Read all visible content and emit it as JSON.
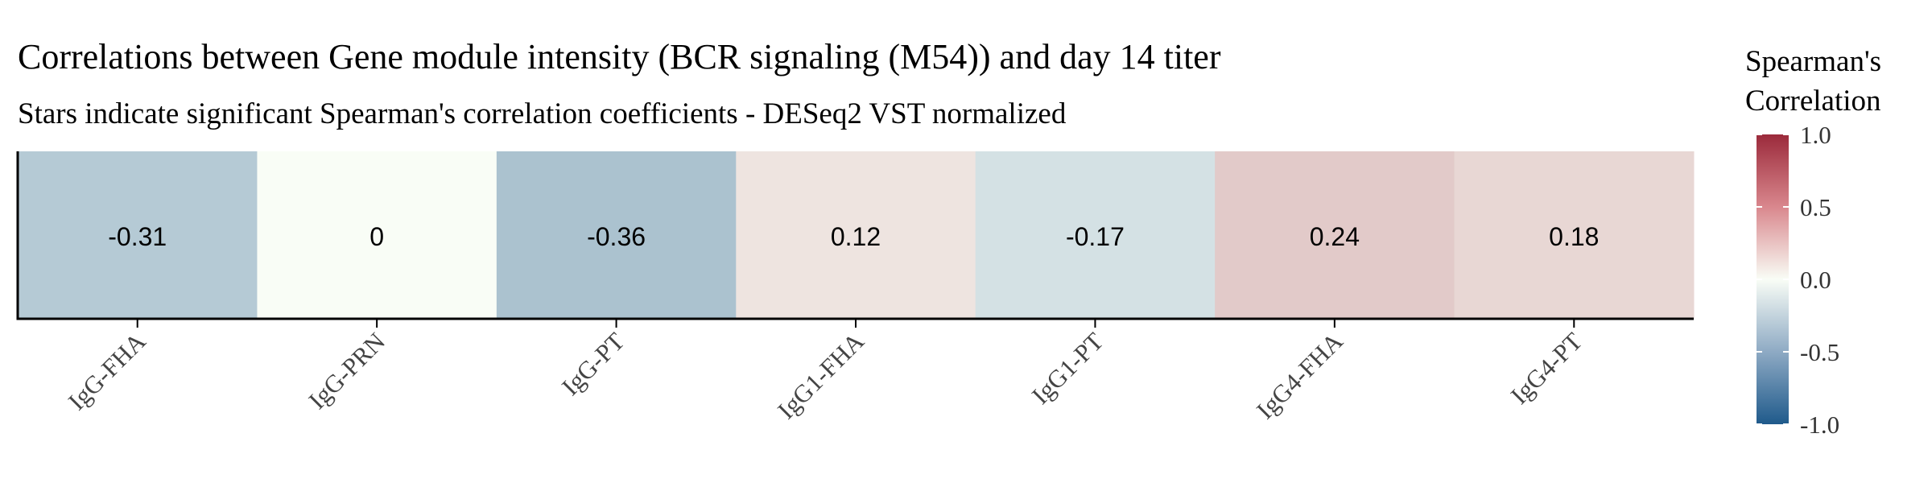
{
  "chart_data": {
    "type": "heatmap",
    "title": "Correlations between Gene module intensity (BCR signaling (M54)) and day 14 titer",
    "subtitle": "Stars indicate significant Spearman's correlation coefficients - DESeq2 VST normalized",
    "categories": [
      "IgG-FHA",
      "IgG-PRN",
      "IgG-PT",
      "IgG1-FHA",
      "IgG1-PT",
      "IgG4-FHA",
      "IgG4-PT"
    ],
    "values": [
      -0.31,
      0,
      -0.36,
      0.12,
      -0.17,
      0.24,
      0.18
    ],
    "value_labels": [
      "-0.31",
      "0",
      "-0.36",
      "0.12",
      "-0.17",
      "0.24",
      "0.18"
    ],
    "legend": {
      "title_lines": [
        "Spearman's",
        "Correlation"
      ],
      "range": [
        -1.0,
        1.0
      ],
      "ticks": [
        1.0,
        0.5,
        0.0,
        -0.5,
        -1.0
      ],
      "tick_labels": [
        "1.0",
        "0.5",
        "0.0",
        "-0.5",
        "-1.0"
      ],
      "position": "right"
    },
    "colors": {
      "low": "#1f5a8b",
      "mid": "#f9fdf6",
      "high": "#9b2a3b"
    }
  }
}
